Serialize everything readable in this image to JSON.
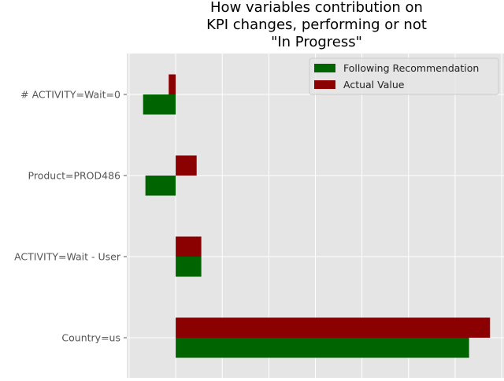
{
  "chart_data": {
    "type": "bar",
    "orientation": "horizontal",
    "title_lines": [
      "How variables contribution on",
      "KPI changes, performing or not",
      "\"In Progress\""
    ],
    "categories": [
      "# ACTIVITY=Wait=0",
      "Product=PROD486",
      "ACTIVITY=Wait - User",
      "Country=us"
    ],
    "series": [
      {
        "name": "Following Recommendation",
        "color": "#006400",
        "values": [
          -0.7,
          -0.65,
          0.55,
          6.3
        ]
      },
      {
        "name": "Actual Value",
        "color": "#8b0000",
        "values": [
          -0.15,
          0.45,
          0.55,
          6.75
        ]
      }
    ],
    "xlim": [
      -1.05,
      7.05
    ],
    "xgrid": [
      -1,
      0,
      1,
      2,
      3,
      4,
      5,
      6,
      7
    ],
    "grid": true,
    "legend_position": "top-right",
    "background": "#e5e5e5",
    "grid_color": "#ffffff"
  }
}
